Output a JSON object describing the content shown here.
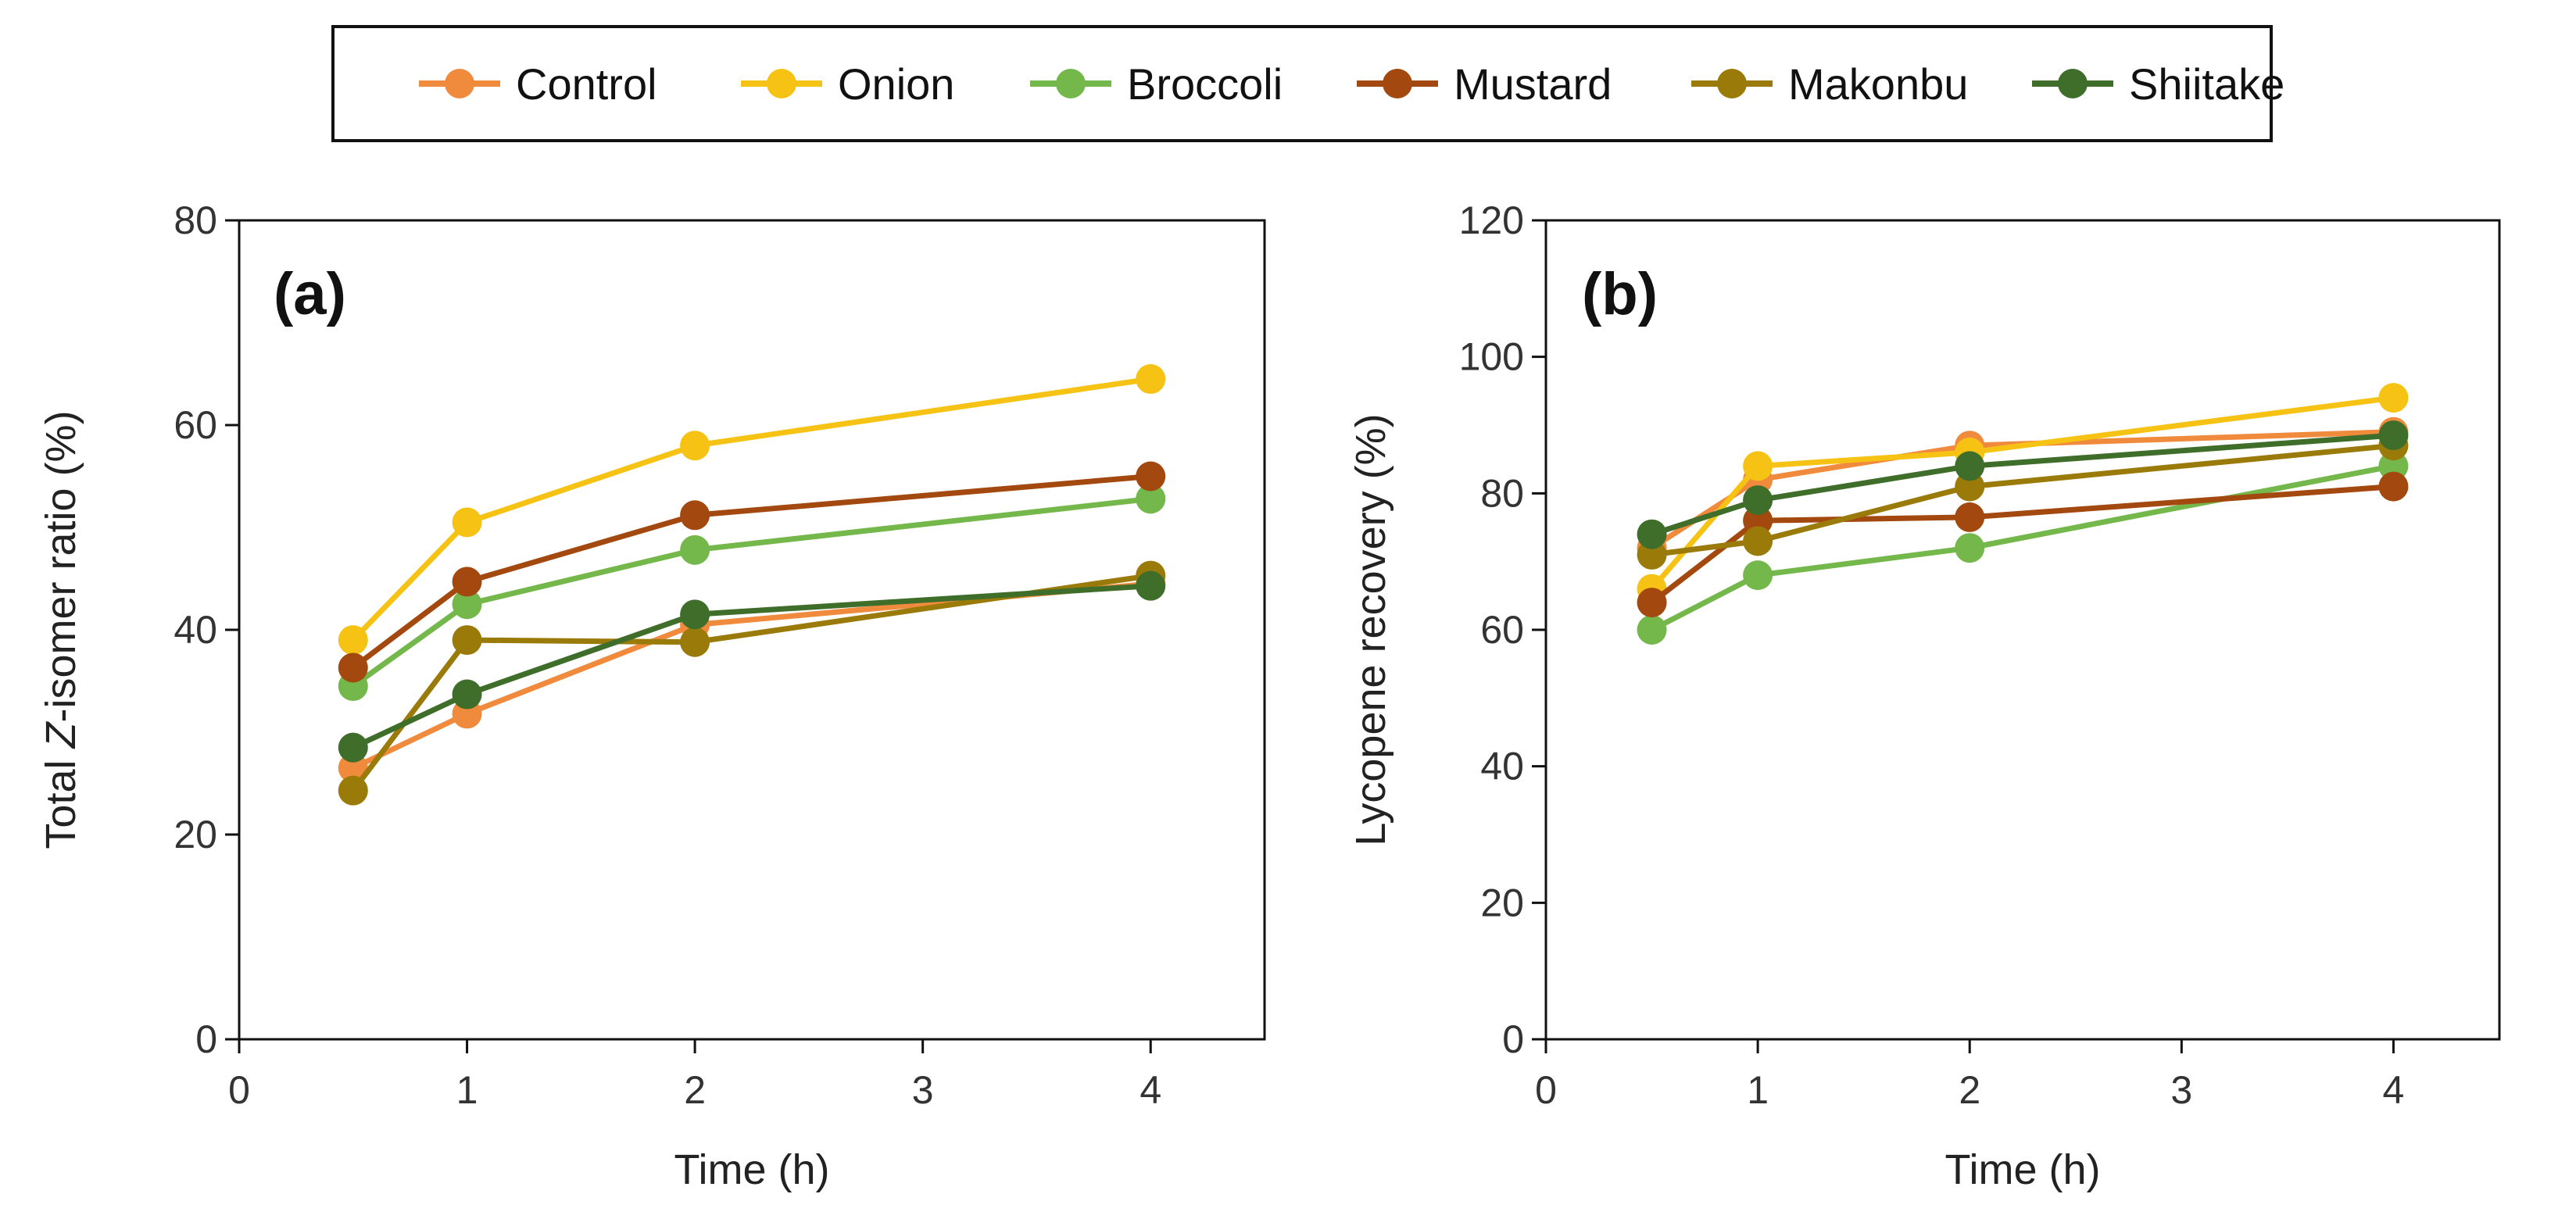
{
  "legend": {
    "items": [
      {
        "name": "Control",
        "color": "#F08A3C"
      },
      {
        "name": "Onion",
        "color": "#F6C314"
      },
      {
        "name": "Broccoli",
        "color": "#74B84C"
      },
      {
        "name": "Mustard",
        "color": "#A3480F"
      },
      {
        "name": "Makonbu",
        "color": "#9A7B0A"
      },
      {
        "name": "Shiitake",
        "color": "#3F6E2B"
      }
    ]
  },
  "chart_data": [
    {
      "type": "line",
      "panel_label": "(a)",
      "title": "",
      "xlabel": "Time (h)",
      "ylabel_prefix": "Total ",
      "ylabel_italic": "Z",
      "ylabel_suffix": "-isomer ratio (%)",
      "xlim": [
        0,
        4.5
      ],
      "ylim": [
        0,
        80
      ],
      "xticks": [
        0,
        1,
        2,
        3,
        4
      ],
      "yticks": [
        0,
        20,
        40,
        60,
        80
      ],
      "x": [
        0.5,
        1,
        2,
        4
      ],
      "series": [
        {
          "name": "Control",
          "color": "#F08A3C",
          "values": [
            26.5,
            31.8,
            40.5,
            44.5
          ]
        },
        {
          "name": "Onion",
          "color": "#F6C314",
          "values": [
            39.0,
            50.5,
            58.0,
            64.5
          ]
        },
        {
          "name": "Broccoli",
          "color": "#74B84C",
          "values": [
            34.5,
            42.5,
            47.8,
            52.8
          ]
        },
        {
          "name": "Mustard",
          "color": "#A3480F",
          "values": [
            36.3,
            44.7,
            51.2,
            55.0
          ]
        },
        {
          "name": "Makonbu",
          "color": "#9A7B0A",
          "values": [
            24.3,
            39.0,
            38.8,
            45.3
          ]
        },
        {
          "name": "Shiitake",
          "color": "#3F6E2B",
          "values": [
            28.5,
            33.7,
            41.5,
            44.3
          ]
        }
      ]
    },
    {
      "type": "line",
      "panel_label": "(b)",
      "title": "",
      "xlabel": "Time (h)",
      "ylabel": "Lycopene recovery (%)",
      "xlim": [
        0,
        4.5
      ],
      "ylim": [
        0,
        120
      ],
      "xticks": [
        0,
        1,
        2,
        3,
        4
      ],
      "yticks": [
        0,
        20,
        40,
        60,
        80,
        100,
        120
      ],
      "x": [
        0.5,
        1,
        2,
        4
      ],
      "series": [
        {
          "name": "Control",
          "color": "#F08A3C",
          "values": [
            72,
            82,
            87,
            89
          ]
        },
        {
          "name": "Onion",
          "color": "#F6C314",
          "values": [
            66,
            84,
            86,
            94
          ]
        },
        {
          "name": "Broccoli",
          "color": "#74B84C",
          "values": [
            60,
            68,
            72,
            84
          ]
        },
        {
          "name": "Mustard",
          "color": "#A3480F",
          "values": [
            64,
            76,
            76.5,
            81
          ]
        },
        {
          "name": "Makonbu",
          "color": "#9A7B0A",
          "values": [
            71,
            73,
            81,
            87
          ]
        },
        {
          "name": "Shiitake",
          "color": "#3F6E2B",
          "values": [
            74,
            79,
            84,
            88.5
          ]
        }
      ]
    }
  ]
}
